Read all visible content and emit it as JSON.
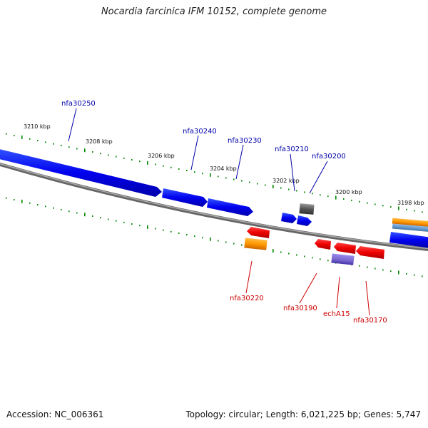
{
  "title": "Nocardia farcinica IFM 10152, complete genome",
  "footer": {
    "accession": "Accession: NC_006361",
    "summary": "Topology: circular; Length: 6,021,225 bp; Genes: 5,747"
  },
  "colors": {
    "forward_gene": "#0000ee",
    "reverse_gene": "#ee0000",
    "orange_feature": "#ff9900",
    "purple_feature": "#7766cc",
    "gray_feature": "#666666",
    "backbone": "#888888",
    "tick": "#008800",
    "forward_label": "#0000aa",
    "reverse_label": "#cc0000"
  },
  "scale_labels": [
    "3210 kbp",
    "3208 kbp",
    "3206 kbp",
    "3204 kbp",
    "3202 kbp",
    "3200 kbp",
    "3198 kbp"
  ],
  "gene_labels": {
    "forward": [
      "nfa30250",
      "nfa30240",
      "nfa30230",
      "nfa30210",
      "nfa30200"
    ],
    "reverse": [
      "nfa30220",
      "nfa30190",
      "echA15",
      "nfa30170"
    ]
  }
}
